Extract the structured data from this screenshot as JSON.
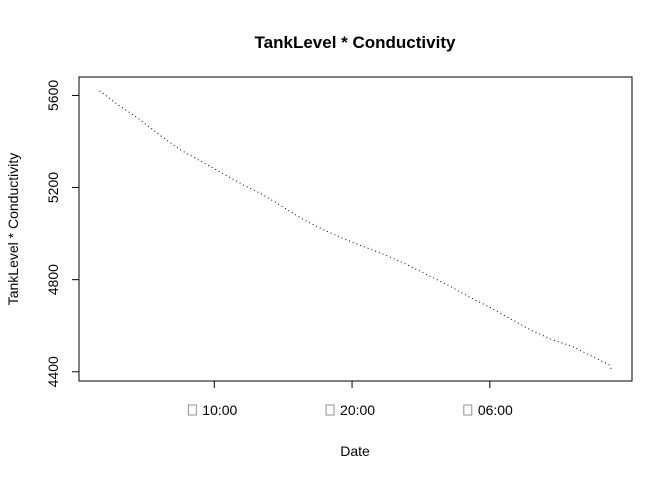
{
  "chart_data": {
    "type": "line",
    "title": "TankLevel * Conductivity",
    "xlabel": "Date",
    "ylabel": "TankLevel * Conductivity",
    "line_style": "dotted",
    "line_color": "#000000",
    "x_ticks": [
      {
        "time": "10:00",
        "label": "10:00"
      },
      {
        "time": "20:00",
        "label": "20:00"
      },
      {
        "time": "06:00",
        "label": "06:00"
      }
    ],
    "y_ticks": [
      4400,
      4800,
      5200,
      5600
    ],
    "ylim": [
      4360,
      5680
    ],
    "series": [
      {
        "points": [
          {
            "t": "01:40",
            "y": 5620
          },
          {
            "t": "03:00",
            "y": 5560
          },
          {
            "t": "04:30",
            "y": 5500
          },
          {
            "t": "06:00",
            "y": 5430
          },
          {
            "t": "07:30",
            "y": 5365
          },
          {
            "t": "09:00",
            "y": 5315
          },
          {
            "t": "10:30",
            "y": 5265
          },
          {
            "t": "12:00",
            "y": 5215
          },
          {
            "t": "13:30",
            "y": 5170
          },
          {
            "t": "15:00",
            "y": 5115
          },
          {
            "t": "16:30",
            "y": 5060
          },
          {
            "t": "18:00",
            "y": 5015
          },
          {
            "t": "19:30",
            "y": 4975
          },
          {
            "t": "21:00",
            "y": 4940
          },
          {
            "t": "22:30",
            "y": 4905
          },
          {
            "t": "00:00",
            "y": 4865
          },
          {
            "t": "01:30",
            "y": 4820
          },
          {
            "t": "03:00",
            "y": 4775
          },
          {
            "t": "04:30",
            "y": 4725
          },
          {
            "t": "06:00",
            "y": 4680
          },
          {
            "t": "07:30",
            "y": 4630
          },
          {
            "t": "09:00",
            "y": 4580
          },
          {
            "t": "10:30",
            "y": 4540
          },
          {
            "t": "12:00",
            "y": 4510
          },
          {
            "t": "13:30",
            "y": 4465
          },
          {
            "t": "14:40",
            "y": 4430
          },
          {
            "t": "14:50",
            "y": 4410
          }
        ]
      }
    ]
  }
}
